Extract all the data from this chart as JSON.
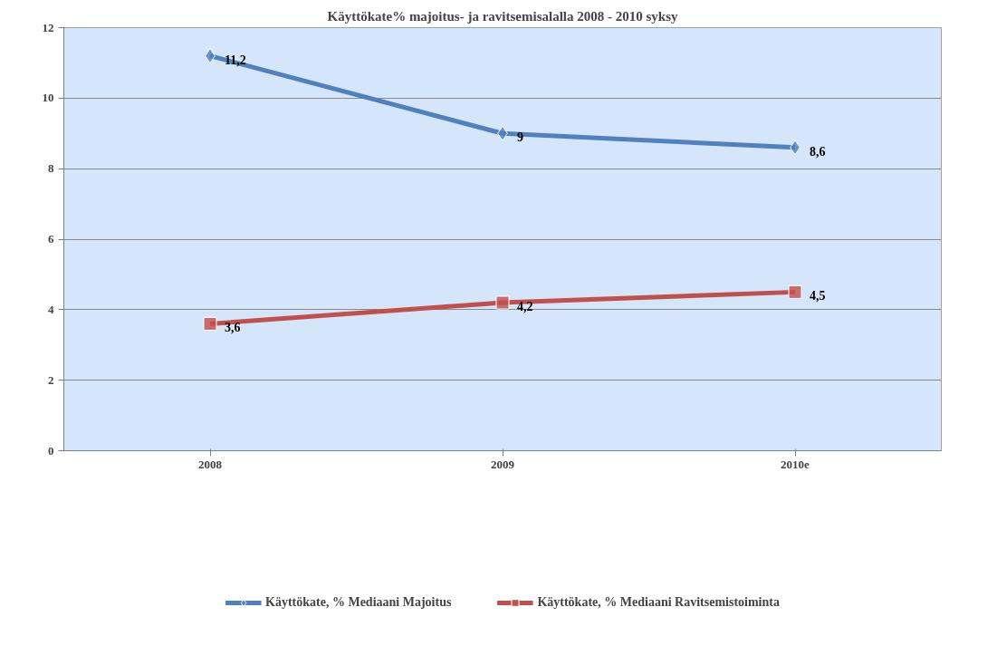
{
  "chart_data": {
    "type": "line",
    "title": "Käyttökate% majoitus- ja ravitsemisalalla 2008 - 2010 syksy",
    "categories": [
      "2008",
      "2009",
      "2010e"
    ],
    "series": [
      {
        "name": "Käyttökate, % Mediaani Majoitus",
        "color": "#4f81bd",
        "marker": "diamond",
        "values": [
          11.2,
          9,
          8.6
        ],
        "value_labels": [
          "11,2",
          "9",
          "8,6"
        ]
      },
      {
        "name": "Käyttökate, % Mediaani Ravitsemistoiminta",
        "color": "#c0504d",
        "marker": "square",
        "values": [
          3.6,
          4.2,
          4.5
        ],
        "value_labels": [
          "3,6",
          "4,2",
          "4,5"
        ]
      }
    ],
    "ylim": [
      0,
      12
    ],
    "yticks": [
      0,
      2,
      4,
      6,
      8,
      10,
      12
    ],
    "grid": "y",
    "legend": "bottom",
    "line_style": "solid"
  }
}
